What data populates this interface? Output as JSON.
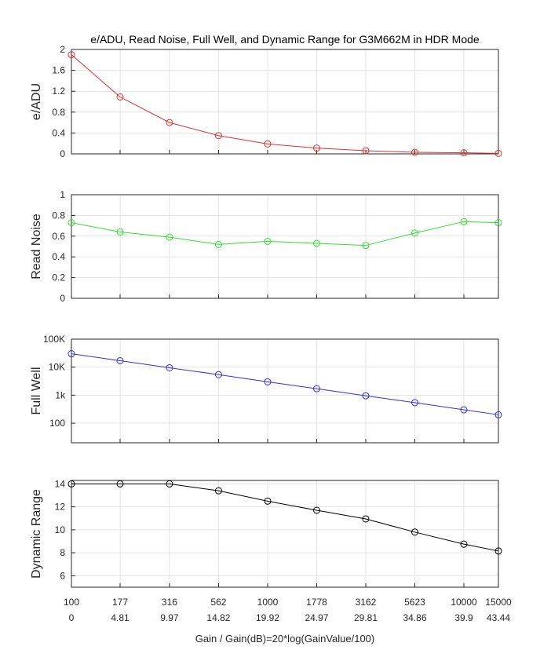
{
  "chart_data": [
    {
      "type": "line",
      "title": "e/ADU, Read Noise, Full Well, and Dynamic Range for G3M662M in HDR Mode",
      "ylabel": "e/ADU",
      "yscale": "linear",
      "ylim": [
        0,
        2
      ],
      "yticks": [
        0,
        0.4,
        0.8,
        1.2,
        1.6,
        2
      ],
      "ytick_labels": [
        "0",
        "0.4",
        "0.8",
        "1.2",
        "1.6",
        "2"
      ],
      "color": "#e03030",
      "marker": "circle",
      "grid": true,
      "x": [
        100,
        177,
        316,
        562,
        1000,
        1778,
        3162,
        5623,
        10000,
        15000
      ],
      "values": [
        1.9,
        1.09,
        0.6,
        0.35,
        0.19,
        0.11,
        0.06,
        0.03,
        0.02,
        0.01
      ]
    },
    {
      "type": "line",
      "ylabel": "Read Noise",
      "yscale": "linear",
      "ylim": [
        0,
        1
      ],
      "yticks": [
        0,
        0.2,
        0.4,
        0.6,
        0.8,
        1
      ],
      "ytick_labels": [
        "0",
        "0.2",
        "0.4",
        "0.6",
        "0.8",
        "1"
      ],
      "color": "#30e030",
      "marker": "circle",
      "grid": true,
      "x": [
        100,
        177,
        316,
        562,
        1000,
        1778,
        3162,
        5623,
        10000,
        15000
      ],
      "values": [
        0.73,
        0.64,
        0.59,
        0.52,
        0.55,
        0.53,
        0.51,
        0.63,
        0.74,
        0.73
      ]
    },
    {
      "type": "line",
      "ylabel": "Full Well",
      "yscale": "log",
      "ylim": [
        20,
        100000
      ],
      "yticks": [
        100,
        1000,
        10000,
        100000
      ],
      "ytick_labels": [
        "100",
        "1k",
        "10K",
        "100K"
      ],
      "color": "#3030e0",
      "marker": "circle",
      "grid": true,
      "x": [
        100,
        177,
        316,
        562,
        1000,
        1778,
        3162,
        5623,
        10000,
        15000
      ],
      "values": [
        30000,
        17000,
        9500,
        5400,
        3000,
        1700,
        950,
        540,
        300,
        200
      ]
    },
    {
      "type": "line",
      "ylabel": "Dynamic Range",
      "yscale": "linear",
      "ylim": [
        5,
        14.3
      ],
      "yticks": [
        6,
        8,
        10,
        12,
        14
      ],
      "ytick_labels": [
        "6",
        "8",
        "10",
        "12",
        "14"
      ],
      "color": "#000000",
      "marker": "circle",
      "grid": true,
      "x": [
        100,
        177,
        316,
        562,
        1000,
        1778,
        3162,
        5623,
        10000,
        15000
      ],
      "values": [
        14,
        14,
        14,
        13.4,
        12.5,
        11.7,
        10.95,
        9.8,
        8.75,
        8.15
      ],
      "xscale": "log",
      "xlim": [
        100,
        15000
      ],
      "xtick_labels": [
        "100",
        "177",
        "316",
        "562",
        "1000",
        "1778",
        "3162",
        "5623",
        "10000",
        "15000"
      ],
      "xtick_labels_db": [
        "0",
        "4.81",
        "9.97",
        "14.82",
        "19.92",
        "24.97",
        "29.81",
        "34.86",
        "39.9",
        "43.44"
      ],
      "xlabel": "Gain / Gain(dB)=20*log(GainValue/100)"
    }
  ]
}
